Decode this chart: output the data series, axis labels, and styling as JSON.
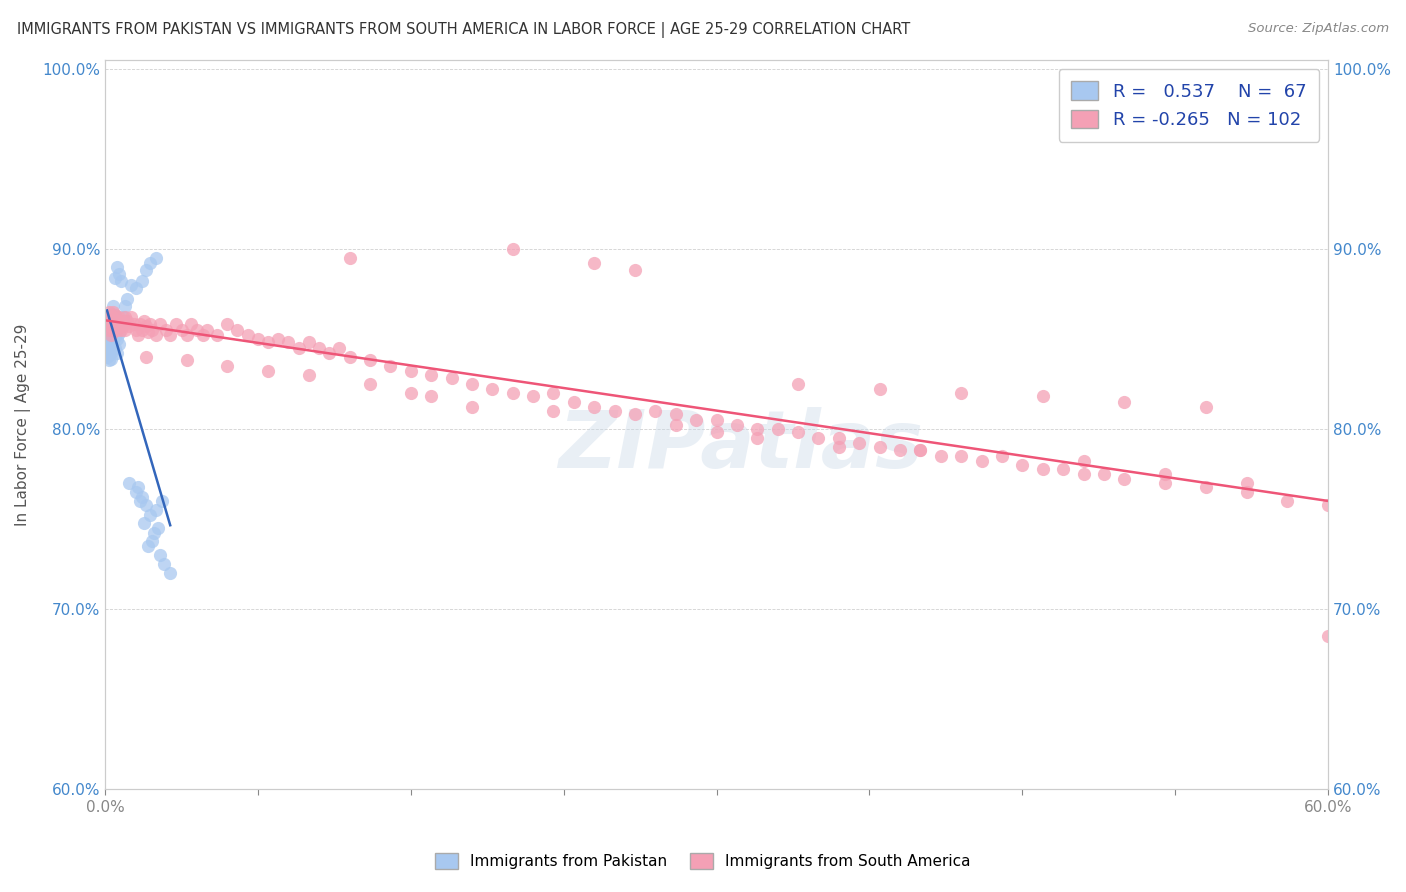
{
  "title": "IMMIGRANTS FROM PAKISTAN VS IMMIGRANTS FROM SOUTH AMERICA IN LABOR FORCE | AGE 25-29 CORRELATION CHART",
  "source": "Source: ZipAtlas.com",
  "ylabel": "In Labor Force | Age 25-29",
  "xlim": [
    0.0,
    0.6
  ],
  "ylim": [
    0.6,
    1.005
  ],
  "xtick_positions": [
    0.0,
    0.075,
    0.15,
    0.225,
    0.3,
    0.375,
    0.45,
    0.525,
    0.6
  ],
  "xtick_labels_show": [
    "0.0%",
    "",
    "",
    "",
    "",
    "",
    "",
    "",
    "60.0%"
  ],
  "yticks": [
    0.6,
    0.7,
    0.8,
    0.9,
    1.0
  ],
  "ytick_labels": [
    "60.0%",
    "70.0%",
    "80.0%",
    "90.0%",
    "100.0%"
  ],
  "pakistan_R": 0.537,
  "pakistan_N": 67,
  "south_america_R": -0.265,
  "south_america_N": 102,
  "pakistan_color": "#a8c8f0",
  "south_america_color": "#f4a0b5",
  "pakistan_line_color": "#3366bb",
  "south_america_line_color": "#ee5577",
  "watermark": "ZIPatlas",
  "legend_label_pakistan": "Immigrants from Pakistan",
  "legend_label_south_america": "Immigrants from South America",
  "pakistan_x": [
    0.001,
    0.001,
    0.001,
    0.001,
    0.001,
    0.001,
    0.002,
    0.002,
    0.002,
    0.002,
    0.002,
    0.002,
    0.002,
    0.002,
    0.002,
    0.003,
    0.003,
    0.003,
    0.003,
    0.003,
    0.003,
    0.003,
    0.004,
    0.004,
    0.004,
    0.004,
    0.004,
    0.005,
    0.005,
    0.005,
    0.005,
    0.006,
    0.006,
    0.006,
    0.007,
    0.007,
    0.008,
    0.009,
    0.01,
    0.011,
    0.013,
    0.015,
    0.018,
    0.02,
    0.022,
    0.025,
    0.02,
    0.018,
    0.016,
    0.028,
    0.025,
    0.022,
    0.019,
    0.026,
    0.024,
    0.023,
    0.021,
    0.027,
    0.029,
    0.032,
    0.012,
    0.015,
    0.017,
    0.008,
    0.007,
    0.006,
    0.005
  ],
  "pakistan_y": [
    0.848,
    0.852,
    0.856,
    0.862,
    0.84,
    0.845,
    0.843,
    0.85,
    0.855,
    0.86,
    0.838,
    0.847,
    0.853,
    0.841,
    0.858,
    0.844,
    0.849,
    0.855,
    0.861,
    0.839,
    0.846,
    0.864,
    0.848,
    0.854,
    0.859,
    0.843,
    0.868,
    0.851,
    0.857,
    0.845,
    0.863,
    0.85,
    0.856,
    0.842,
    0.853,
    0.847,
    0.859,
    0.862,
    0.868,
    0.872,
    0.88,
    0.878,
    0.882,
    0.888,
    0.892,
    0.895,
    0.758,
    0.762,
    0.768,
    0.76,
    0.755,
    0.752,
    0.748,
    0.745,
    0.742,
    0.738,
    0.735,
    0.73,
    0.725,
    0.72,
    0.77,
    0.765,
    0.76,
    0.882,
    0.886,
    0.89,
    0.884
  ],
  "south_america_x": [
    0.001,
    0.001,
    0.002,
    0.002,
    0.002,
    0.003,
    0.003,
    0.003,
    0.004,
    0.004,
    0.004,
    0.005,
    0.005,
    0.006,
    0.006,
    0.007,
    0.007,
    0.008,
    0.008,
    0.009,
    0.01,
    0.01,
    0.011,
    0.012,
    0.013,
    0.014,
    0.015,
    0.016,
    0.017,
    0.018,
    0.019,
    0.02,
    0.021,
    0.022,
    0.023,
    0.025,
    0.027,
    0.03,
    0.032,
    0.035,
    0.038,
    0.04,
    0.042,
    0.045,
    0.048,
    0.05,
    0.055,
    0.06,
    0.065,
    0.07,
    0.075,
    0.08,
    0.085,
    0.09,
    0.095,
    0.1,
    0.105,
    0.11,
    0.115,
    0.12,
    0.13,
    0.14,
    0.15,
    0.16,
    0.17,
    0.18,
    0.19,
    0.2,
    0.21,
    0.22,
    0.23,
    0.24,
    0.25,
    0.26,
    0.27,
    0.28,
    0.29,
    0.3,
    0.31,
    0.32,
    0.33,
    0.34,
    0.35,
    0.36,
    0.37,
    0.38,
    0.39,
    0.4,
    0.41,
    0.42,
    0.43,
    0.45,
    0.46,
    0.47,
    0.48,
    0.49,
    0.5,
    0.52,
    0.54,
    0.56,
    0.58,
    0.6
  ],
  "south_america_y": [
    0.858,
    0.862,
    0.855,
    0.86,
    0.865,
    0.852,
    0.857,
    0.863,
    0.855,
    0.86,
    0.865,
    0.858,
    0.863,
    0.855,
    0.86,
    0.857,
    0.862,
    0.855,
    0.86,
    0.857,
    0.862,
    0.855,
    0.86,
    0.857,
    0.862,
    0.858,
    0.855,
    0.852,
    0.858,
    0.855,
    0.86,
    0.857,
    0.854,
    0.858,
    0.855,
    0.852,
    0.858,
    0.855,
    0.852,
    0.858,
    0.855,
    0.852,
    0.858,
    0.855,
    0.852,
    0.855,
    0.852,
    0.858,
    0.855,
    0.852,
    0.85,
    0.848,
    0.85,
    0.848,
    0.845,
    0.848,
    0.845,
    0.842,
    0.845,
    0.84,
    0.838,
    0.835,
    0.832,
    0.83,
    0.828,
    0.825,
    0.822,
    0.82,
    0.818,
    0.82,
    0.815,
    0.812,
    0.81,
    0.808,
    0.81,
    0.808,
    0.805,
    0.805,
    0.802,
    0.8,
    0.8,
    0.798,
    0.795,
    0.795,
    0.792,
    0.79,
    0.788,
    0.788,
    0.785,
    0.785,
    0.782,
    0.78,
    0.778,
    0.778,
    0.775,
    0.775,
    0.772,
    0.77,
    0.768,
    0.765,
    0.76,
    0.758
  ],
  "south_america_outliers_x": [
    0.12,
    0.2,
    0.24,
    0.26,
    0.34,
    0.38,
    0.42,
    0.46,
    0.5,
    0.54,
    0.02,
    0.04,
    0.06,
    0.08,
    0.1,
    0.13,
    0.15,
    0.16,
    0.18,
    0.22,
    0.28,
    0.3,
    0.32,
    0.36,
    0.4,
    0.44,
    0.48,
    0.52,
    0.56,
    0.6
  ],
  "south_america_outliers_y": [
    0.895,
    0.9,
    0.892,
    0.888,
    0.825,
    0.822,
    0.82,
    0.818,
    0.815,
    0.812,
    0.84,
    0.838,
    0.835,
    0.832,
    0.83,
    0.825,
    0.82,
    0.818,
    0.812,
    0.81,
    0.802,
    0.798,
    0.795,
    0.79,
    0.788,
    0.785,
    0.782,
    0.775,
    0.77,
    0.685
  ]
}
